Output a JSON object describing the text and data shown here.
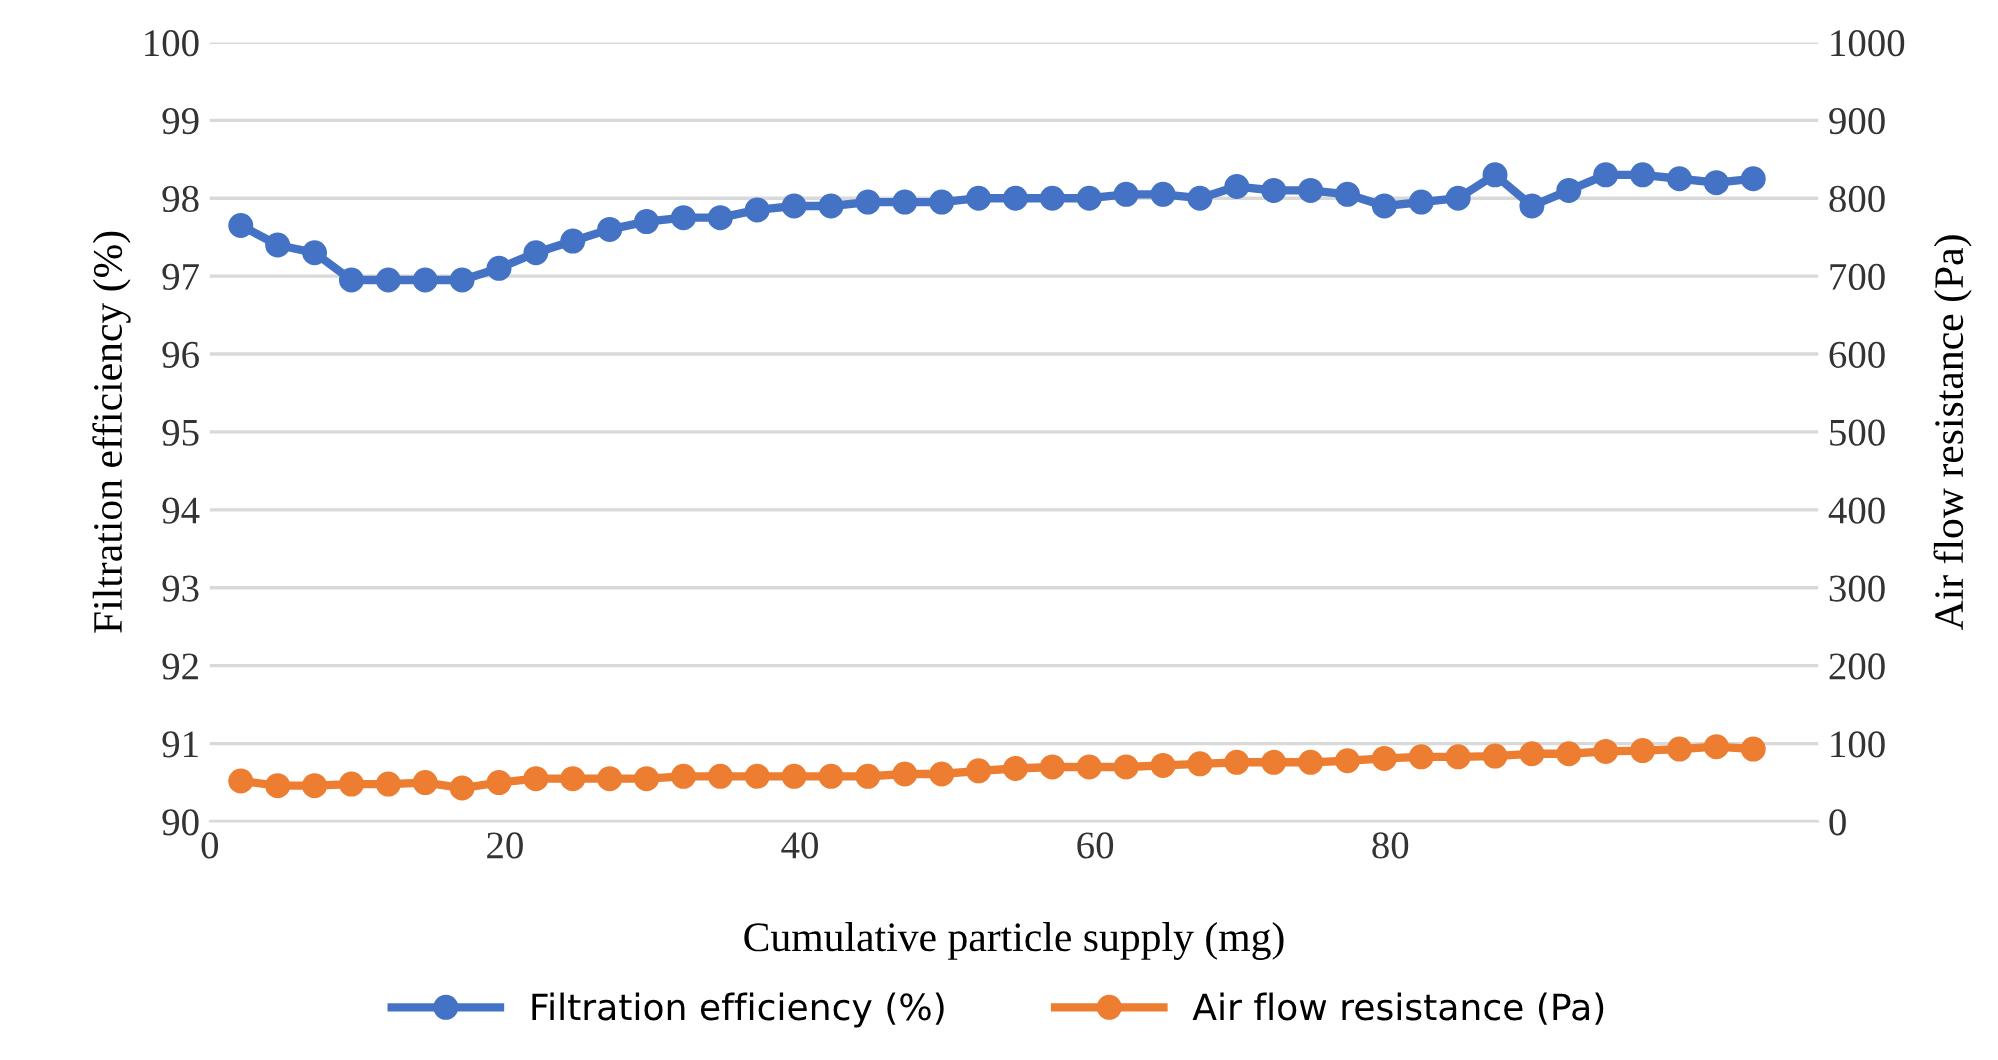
{
  "chart_data": {
    "type": "line",
    "xlabel": "Cumulative particle supply (mg)",
    "ylabel": "Filtration efficiency (%)",
    "y2label": "Air flow resistance (Pa)",
    "x": [
      2.1,
      4.6,
      7.1,
      9.6,
      12.1,
      14.6,
      17.1,
      19.6,
      22.1,
      24.6,
      27.1,
      29.6,
      32.1,
      34.6,
      37.1,
      39.6,
      42.1,
      44.6,
      47.1,
      49.6,
      52.1,
      54.6,
      57.1,
      59.6,
      62.1,
      64.6,
      67.1,
      69.6,
      72.1,
      74.6,
      77.1,
      79.6,
      82.1,
      84.6,
      87.1,
      89.6,
      92.1,
      94.6,
      97.1,
      99.6,
      102.1,
      104.6
    ],
    "xlim": [
      0,
      109
    ],
    "xticks": [
      0,
      20,
      40,
      60,
      80
    ],
    "ylim": [
      90,
      100
    ],
    "yticks": [
      90,
      91,
      92,
      93,
      94,
      95,
      96,
      97,
      98,
      99,
      100
    ],
    "y2lim": [
      0,
      1000
    ],
    "y2ticks": [
      0,
      100,
      200,
      300,
      400,
      500,
      600,
      700,
      800,
      900,
      1000
    ],
    "grid": "y",
    "legend": "bottom",
    "marker": "circle",
    "line_style": "solid",
    "series": [
      {
        "name": "Filtration efficiency (%)",
        "color": "#4472c4",
        "values": [
          97.65,
          97.4,
          97.3,
          96.95,
          96.95,
          96.95,
          96.95,
          97.1,
          97.3,
          97.45,
          97.6,
          97.7,
          97.75,
          97.75,
          97.85,
          97.9,
          97.9,
          97.95,
          97.95,
          97.95,
          98.0,
          98.0,
          98.0,
          98.0,
          98.05,
          98.05,
          98.0,
          98.15,
          98.1,
          98.1,
          98.05,
          97.9,
          97.95,
          98.0,
          98.3,
          97.9,
          98.1,
          98.3,
          98.3,
          98.25,
          98.2,
          98.25
        ]
      },
      {
        "name": "Air flow resistance (Pa)",
        "color": "#ed7d31",
        "axis": "y2",
        "values": [
          52,
          46,
          46,
          48,
          48,
          50,
          43,
          50,
          55,
          55,
          55,
          55,
          58,
          58,
          58,
          58,
          58,
          58,
          61,
          61,
          65,
          68,
          70,
          70,
          70,
          72,
          74,
          76,
          76,
          76,
          78,
          81,
          83,
          83,
          84,
          87,
          87,
          90,
          91,
          93,
          96,
          93
        ]
      }
    ]
  }
}
